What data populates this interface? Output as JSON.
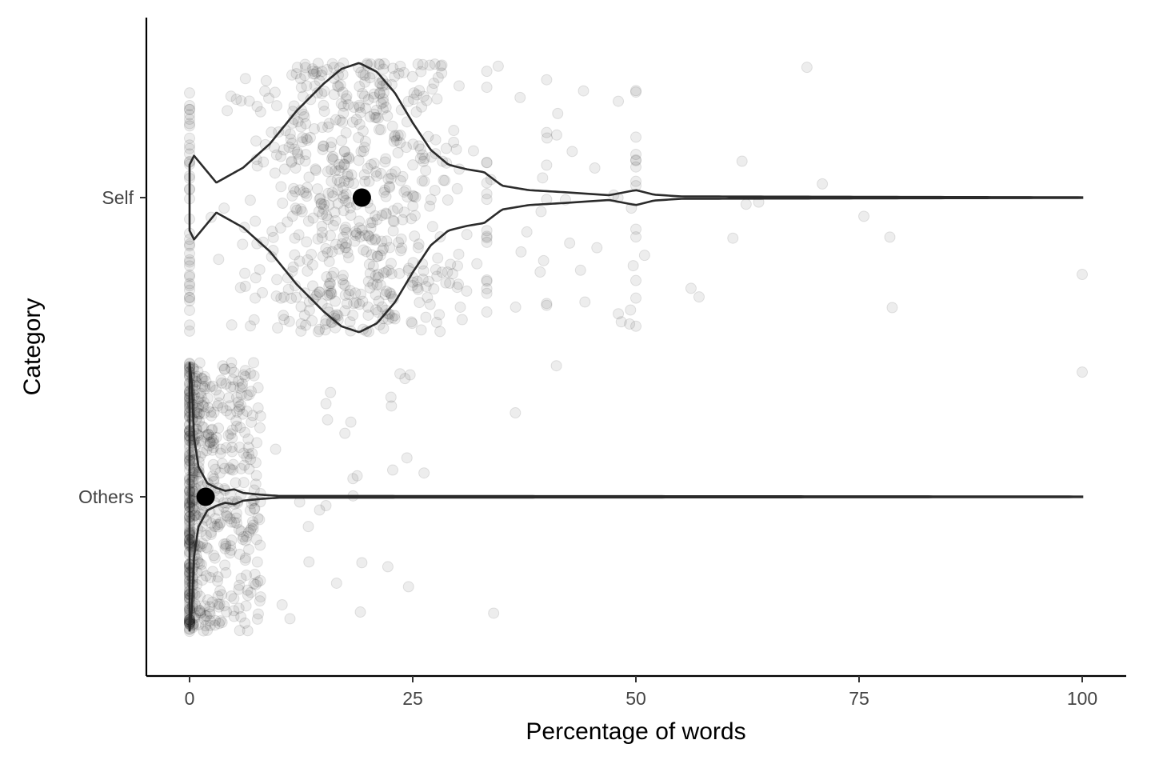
{
  "chart_data": {
    "type": "scatter",
    "subtype": "violin-with-jitter",
    "title": "",
    "xlabel": "Percentage of words",
    "ylabel": "Category",
    "xlim": [
      -9.5,
      104.5
    ],
    "x_ticks": [
      0,
      25,
      50,
      75,
      100
    ],
    "x_tick_labels": [
      "0",
      "25",
      "50",
      "75",
      "100"
    ],
    "categories": [
      "Self",
      "Others"
    ],
    "grid": false,
    "legend": "none",
    "colors": {
      "points": "#000000",
      "violin": "#2b2b2b",
      "mean": "#000000"
    },
    "series": [
      {
        "category": "Self",
        "mean": 19.3,
        "violin_max_halfwidth": 0.45,
        "violin_profile": [
          [
            0,
            0.11
          ],
          [
            0.5,
            0.14
          ],
          [
            3,
            0.05
          ],
          [
            6,
            0.1
          ],
          [
            9,
            0.18
          ],
          [
            12,
            0.29
          ],
          [
            15,
            0.38
          ],
          [
            17,
            0.43
          ],
          [
            19,
            0.45
          ],
          [
            21,
            0.42
          ],
          [
            23,
            0.35
          ],
          [
            25,
            0.25
          ],
          [
            27,
            0.16
          ],
          [
            29,
            0.11
          ],
          [
            31,
            0.095
          ],
          [
            33,
            0.085
          ],
          [
            35,
            0.04
          ],
          [
            38,
            0.025
          ],
          [
            42,
            0.018
          ],
          [
            47,
            0.008
          ],
          [
            50,
            0.025
          ],
          [
            52,
            0.01
          ],
          [
            55,
            0.004
          ],
          [
            100,
            0.001
          ]
        ],
        "point_clusters": [
          {
            "x_from": 0,
            "x_to": 0,
            "n": 40
          },
          {
            "x_from": 0.5,
            "x_to": 36,
            "n": 620
          },
          {
            "x_from": 33.3,
            "x_to": 33.3,
            "n": 16
          },
          {
            "x_from": 40,
            "x_to": 40,
            "n": 6
          },
          {
            "x_from": 50,
            "x_to": 50,
            "n": 14
          },
          {
            "x_from": 36,
            "x_to": 50,
            "n": 28
          },
          {
            "x_from": 50,
            "x_to": 80,
            "n": 12
          },
          {
            "x_from": 100,
            "x_to": 100,
            "n": 1
          }
        ]
      },
      {
        "category": "Others",
        "mean": 1.8,
        "violin_max_halfwidth": 0.45,
        "violin_profile": [
          [
            0,
            0.45
          ],
          [
            0.25,
            0.38
          ],
          [
            0.5,
            0.2
          ],
          [
            1,
            0.1
          ],
          [
            2,
            0.045
          ],
          [
            3,
            0.03
          ],
          [
            4,
            0.02
          ],
          [
            5,
            0.025
          ],
          [
            6,
            0.013
          ],
          [
            8,
            0.007
          ],
          [
            10,
            0.003
          ],
          [
            100,
            0.001
          ]
        ],
        "point_clusters": [
          {
            "x_from": 0,
            "x_to": 0,
            "n": 160
          },
          {
            "x_from": 0.3,
            "x_to": 8,
            "n": 420
          },
          {
            "x_from": 8,
            "x_to": 25,
            "n": 28
          },
          {
            "x_from": 25,
            "x_to": 45,
            "n": 4
          },
          {
            "x_from": 100,
            "x_to": 100,
            "n": 1
          }
        ]
      }
    ]
  }
}
